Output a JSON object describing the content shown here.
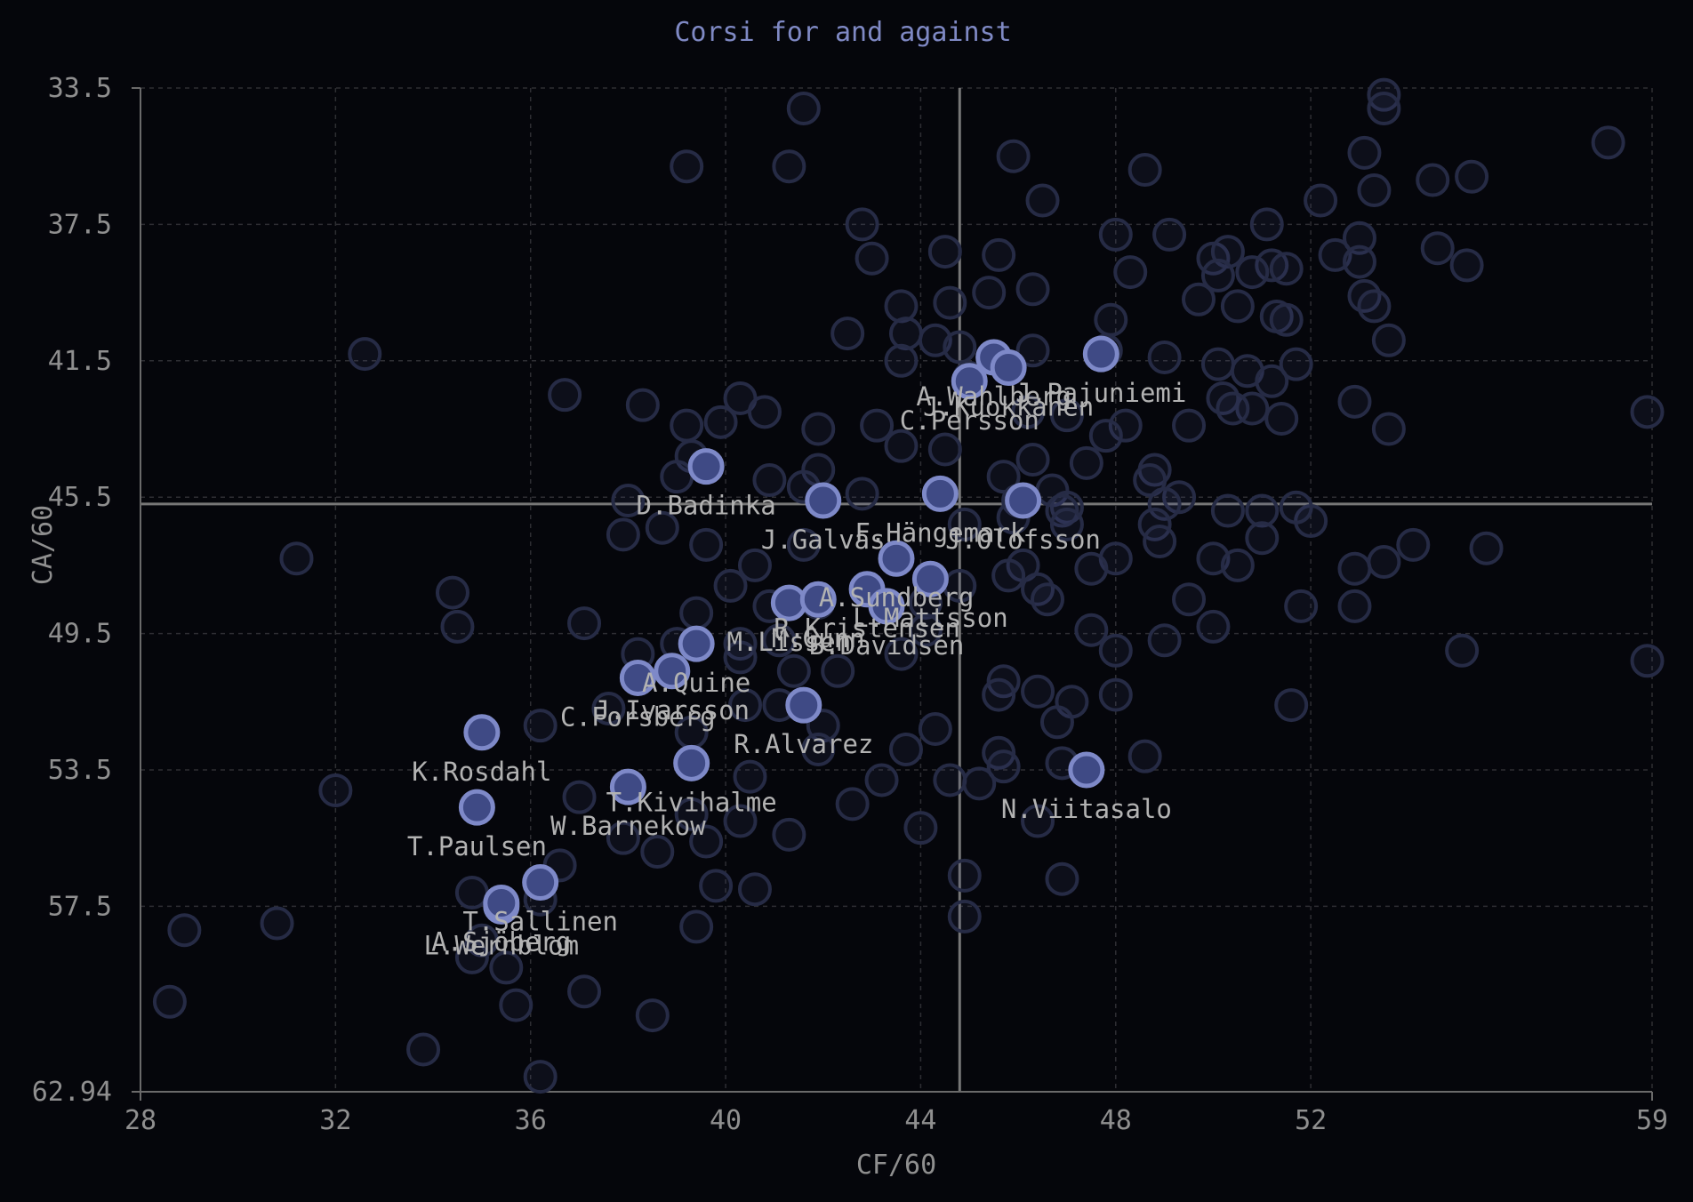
{
  "chart_data": {
    "type": "scatter",
    "title": "Corsi for and against",
    "xlabel": "CF/60",
    "ylabel": "CA/60",
    "xlim": [
      28,
      59
    ],
    "ylim": [
      33.5,
      62.94
    ],
    "y_inverted": true,
    "xticks": [
      "28",
      "32",
      "36",
      "40",
      "44",
      "48",
      "52",
      "59"
    ],
    "yticks": [
      "33.5",
      "37.5",
      "41.5",
      "45.5",
      "49.5",
      "53.5",
      "57.5",
      "62.94"
    ],
    "grid": true,
    "reference_lines": {
      "x": 44.8,
      "y": 45.7
    },
    "colors": {
      "highlight_fill": "#3f4a85",
      "highlight_stroke": "#7e89c8",
      "background_stroke": "#262b45",
      "title": "#7f89c4"
    },
    "highlighted": [
      {
        "label": "A.Wahlberg",
        "x": 45.5,
        "y": 41.4
      },
      {
        "label": "C.Persson",
        "x": 45.0,
        "y": 42.1
      },
      {
        "label": "J.Pajuniemi",
        "x": 47.7,
        "y": 41.3
      },
      {
        "label": "J.Kuokkanen",
        "x": 45.8,
        "y": 41.7
      },
      {
        "label": "D.Badinka",
        "x": 39.6,
        "y": 44.6
      },
      {
        "label": "J.Galvas",
        "x": 42.0,
        "y": 45.6
      },
      {
        "label": "F.Hängemark",
        "x": 44.4,
        "y": 45.4
      },
      {
        "label": "J.Olofsson",
        "x": 46.1,
        "y": 45.6
      },
      {
        "label": "A.Sundberg",
        "x": 43.5,
        "y": 47.3
      },
      {
        "label": "L.Mattsson",
        "x": 44.2,
        "y": 47.9
      },
      {
        "label": "M.Lissen",
        "x": 41.3,
        "y": 48.6
      },
      {
        "label": "M.Gunn",
        "x": 41.9,
        "y": 48.5
      },
      {
        "label": "R.Kristensen",
        "x": 42.9,
        "y": 48.2
      },
      {
        "label": "B.Davidsen",
        "x": 43.3,
        "y": 48.7
      },
      {
        "label": "A.Quine",
        "x": 39.4,
        "y": 49.8
      },
      {
        "label": "J.Ivarsson",
        "x": 38.9,
        "y": 50.6
      },
      {
        "label": "C.Forsberg",
        "x": 38.2,
        "y": 50.8
      },
      {
        "label": "R.Alvarez",
        "x": 41.6,
        "y": 51.6
      },
      {
        "label": "T.Kivihalme",
        "x": 39.3,
        "y": 53.3
      },
      {
        "label": "K.Rosdahl",
        "x": 35.0,
        "y": 52.4
      },
      {
        "label": "W.Barnekow",
        "x": 38.0,
        "y": 54.0
      },
      {
        "label": "N.Viitasalo",
        "x": 47.4,
        "y": 53.5
      },
      {
        "label": "T.Sallinen",
        "x": 36.2,
        "y": 56.8
      },
      {
        "label": "T.Paulsen",
        "x": 34.9,
        "y": 54.6
      },
      {
        "label": "L.Wernblom",
        "x": 35.4,
        "y": 57.5
      },
      {
        "label": "A.Sjöberg",
        "x": 35.4,
        "y": 57.4
      }
    ],
    "background": [
      [
        53.5,
        33.7
      ],
      [
        53.5,
        34.1
      ],
      [
        41.6,
        34.1
      ],
      [
        58.1,
        35.1
      ],
      [
        45.9,
        35.5
      ],
      [
        53.1,
        35.4
      ],
      [
        39.2,
        35.8
      ],
      [
        41.3,
        35.8
      ],
      [
        48.6,
        35.9
      ],
      [
        54.5,
        36.2
      ],
      [
        55.3,
        36.1
      ],
      [
        53.3,
        36.5
      ],
      [
        46.5,
        36.8
      ],
      [
        52.2,
        36.8
      ],
      [
        48.0,
        37.8
      ],
      [
        49.1,
        37.8
      ],
      [
        42.8,
        37.5
      ],
      [
        51.1,
        37.5
      ],
      [
        53.0,
        37.9
      ],
      [
        43.0,
        38.5
      ],
      [
        44.5,
        38.3
      ],
      [
        45.6,
        38.4
      ],
      [
        50.0,
        38.5
      ],
      [
        50.3,
        38.3
      ],
      [
        52.5,
        38.4
      ],
      [
        53.0,
        38.6
      ],
      [
        54.6,
        38.2
      ],
      [
        55.2,
        38.7
      ],
      [
        51.2,
        38.7
      ],
      [
        51.5,
        38.8
      ],
      [
        48.3,
        38.9
      ],
      [
        45.4,
        39.5
      ],
      [
        46.3,
        39.4
      ],
      [
        50.1,
        39.0
      ],
      [
        50.8,
        38.9
      ],
      [
        53.1,
        39.6
      ],
      [
        49.7,
        39.7
      ],
      [
        50.5,
        39.9
      ],
      [
        53.3,
        39.9
      ],
      [
        44.6,
        39.8
      ],
      [
        43.6,
        39.9
      ],
      [
        51.3,
        40.2
      ],
      [
        51.5,
        40.3
      ],
      [
        47.9,
        40.3
      ],
      [
        42.5,
        40.7
      ],
      [
        43.7,
        40.7
      ],
      [
        44.3,
        40.9
      ],
      [
        53.6,
        40.9
      ],
      [
        44.8,
        41.1
      ],
      [
        46.3,
        41.2
      ],
      [
        47.8,
        41.2
      ],
      [
        49.0,
        41.4
      ],
      [
        43.6,
        41.5
      ],
      [
        32.6,
        41.3
      ],
      [
        50.1,
        41.6
      ],
      [
        50.7,
        41.8
      ],
      [
        51.7,
        41.6
      ],
      [
        51.2,
        42.1
      ],
      [
        45.0,
        42.0
      ],
      [
        36.7,
        42.5
      ],
      [
        38.3,
        42.8
      ],
      [
        40.3,
        42.6
      ],
      [
        52.9,
        42.7
      ],
      [
        40.8,
        43.0
      ],
      [
        46.2,
        43.0
      ],
      [
        47.0,
        43.1
      ],
      [
        50.8,
        42.9
      ],
      [
        51.4,
        43.2
      ],
      [
        58.9,
        43.0
      ],
      [
        50.2,
        42.6
      ],
      [
        50.4,
        42.9
      ],
      [
        39.9,
        43.3
      ],
      [
        39.2,
        43.4
      ],
      [
        41.9,
        43.5
      ],
      [
        43.1,
        43.4
      ],
      [
        48.2,
        43.4
      ],
      [
        49.5,
        43.4
      ],
      [
        53.6,
        43.5
      ],
      [
        47.8,
        43.7
      ],
      [
        43.6,
        44.0
      ],
      [
        44.5,
        44.1
      ],
      [
        39.3,
        44.3
      ],
      [
        46.3,
        44.4
      ],
      [
        47.4,
        44.5
      ],
      [
        48.8,
        44.7
      ],
      [
        39.0,
        44.9
      ],
      [
        41.9,
        44.7
      ],
      [
        45.7,
        44.9
      ],
      [
        40.9,
        45.0
      ],
      [
        41.6,
        45.2
      ],
      [
        46.7,
        45.3
      ],
      [
        48.7,
        45.0
      ],
      [
        38.0,
        45.6
      ],
      [
        42.8,
        45.4
      ],
      [
        47.0,
        45.8
      ],
      [
        49.3,
        45.5
      ],
      [
        46.0,
        45.6
      ],
      [
        46.9,
        45.9
      ],
      [
        49.0,
        45.7
      ],
      [
        45.9,
        46.1
      ],
      [
        51.0,
        45.9
      ],
      [
        48.8,
        46.3
      ],
      [
        50.3,
        45.9
      ],
      [
        52.0,
        46.2
      ],
      [
        51.7,
        45.8
      ],
      [
        44.9,
        46.3
      ],
      [
        37.9,
        46.6
      ],
      [
        38.7,
        46.4
      ],
      [
        39.6,
        46.9
      ],
      [
        41.6,
        46.9
      ],
      [
        47.0,
        46.3
      ],
      [
        48.0,
        47.3
      ],
      [
        31.2,
        47.3
      ],
      [
        48.9,
        46.8
      ],
      [
        51.0,
        46.7
      ],
      [
        54.1,
        46.9
      ],
      [
        55.6,
        47.0
      ],
      [
        50.0,
        47.3
      ],
      [
        46.1,
        47.5
      ],
      [
        53.5,
        47.4
      ],
      [
        50.5,
        47.5
      ],
      [
        52.9,
        47.6
      ],
      [
        40.6,
        47.5
      ],
      [
        47.5,
        47.6
      ],
      [
        45.8,
        47.8
      ],
      [
        46.4,
        48.2
      ],
      [
        34.4,
        48.3
      ],
      [
        40.1,
        48.1
      ],
      [
        44.8,
        48.1
      ],
      [
        46.6,
        48.5
      ],
      [
        49.5,
        48.5
      ],
      [
        41.9,
        48.6
      ],
      [
        44.1,
        48.6
      ],
      [
        51.8,
        48.7
      ],
      [
        52.9,
        48.7
      ],
      [
        40.9,
        48.7
      ],
      [
        39.4,
        48.9
      ],
      [
        34.5,
        49.3
      ],
      [
        37.1,
        49.2
      ],
      [
        50.0,
        49.3
      ],
      [
        44.1,
        49.4
      ],
      [
        47.5,
        49.4
      ],
      [
        49.0,
        49.7
      ],
      [
        39.0,
        49.8
      ],
      [
        40.3,
        49.8
      ],
      [
        41.1,
        49.7
      ],
      [
        48.0,
        50.0
      ],
      [
        55.1,
        50.0
      ],
      [
        38.2,
        50.1
      ],
      [
        40.3,
        50.2
      ],
      [
        41.4,
        50.6
      ],
      [
        43.6,
        50.1
      ],
      [
        58.9,
        50.3
      ],
      [
        42.3,
        50.6
      ],
      [
        45.7,
        50.9
      ],
      [
        45.6,
        51.3
      ],
      [
        46.4,
        51.2
      ],
      [
        47.1,
        51.5
      ],
      [
        48.0,
        51.3
      ],
      [
        51.6,
        51.6
      ],
      [
        37.6,
        51.7
      ],
      [
        40.4,
        51.6
      ],
      [
        41.1,
        51.6
      ],
      [
        46.8,
        52.1
      ],
      [
        36.2,
        52.2
      ],
      [
        39.3,
        52.4
      ],
      [
        42.0,
        52.2
      ],
      [
        44.3,
        52.3
      ],
      [
        41.9,
        52.9
      ],
      [
        43.7,
        52.9
      ],
      [
        45.6,
        53.0
      ],
      [
        46.9,
        53.3
      ],
      [
        48.6,
        53.1
      ],
      [
        45.7,
        53.4
      ],
      [
        40.5,
        53.7
      ],
      [
        44.6,
        53.8
      ],
      [
        45.2,
        53.9
      ],
      [
        43.2,
        53.8
      ],
      [
        32.0,
        54.1
      ],
      [
        37.0,
        54.3
      ],
      [
        42.6,
        54.5
      ],
      [
        39.3,
        54.8
      ],
      [
        40.3,
        55.0
      ],
      [
        37.9,
        55.5
      ],
      [
        39.6,
        55.6
      ],
      [
        41.3,
        55.4
      ],
      [
        44.0,
        55.2
      ],
      [
        46.4,
        55.0
      ],
      [
        38.6,
        55.9
      ],
      [
        36.6,
        56.3
      ],
      [
        44.9,
        56.6
      ],
      [
        46.9,
        56.7
      ],
      [
        39.8,
        56.9
      ],
      [
        40.6,
        57.0
      ],
      [
        34.8,
        57.1
      ],
      [
        36.2,
        57.3
      ],
      [
        44.9,
        57.8
      ],
      [
        30.8,
        58.0
      ],
      [
        39.4,
        58.1
      ],
      [
        28.9,
        58.2
      ],
      [
        35.0,
        58.5
      ],
      [
        34.8,
        59.0
      ],
      [
        35.5,
        59.3
      ],
      [
        37.1,
        60.0
      ],
      [
        28.6,
        60.3
      ],
      [
        35.7,
        60.4
      ],
      [
        38.5,
        60.7
      ],
      [
        33.8,
        61.7
      ],
      [
        36.2,
        62.5
      ]
    ]
  }
}
